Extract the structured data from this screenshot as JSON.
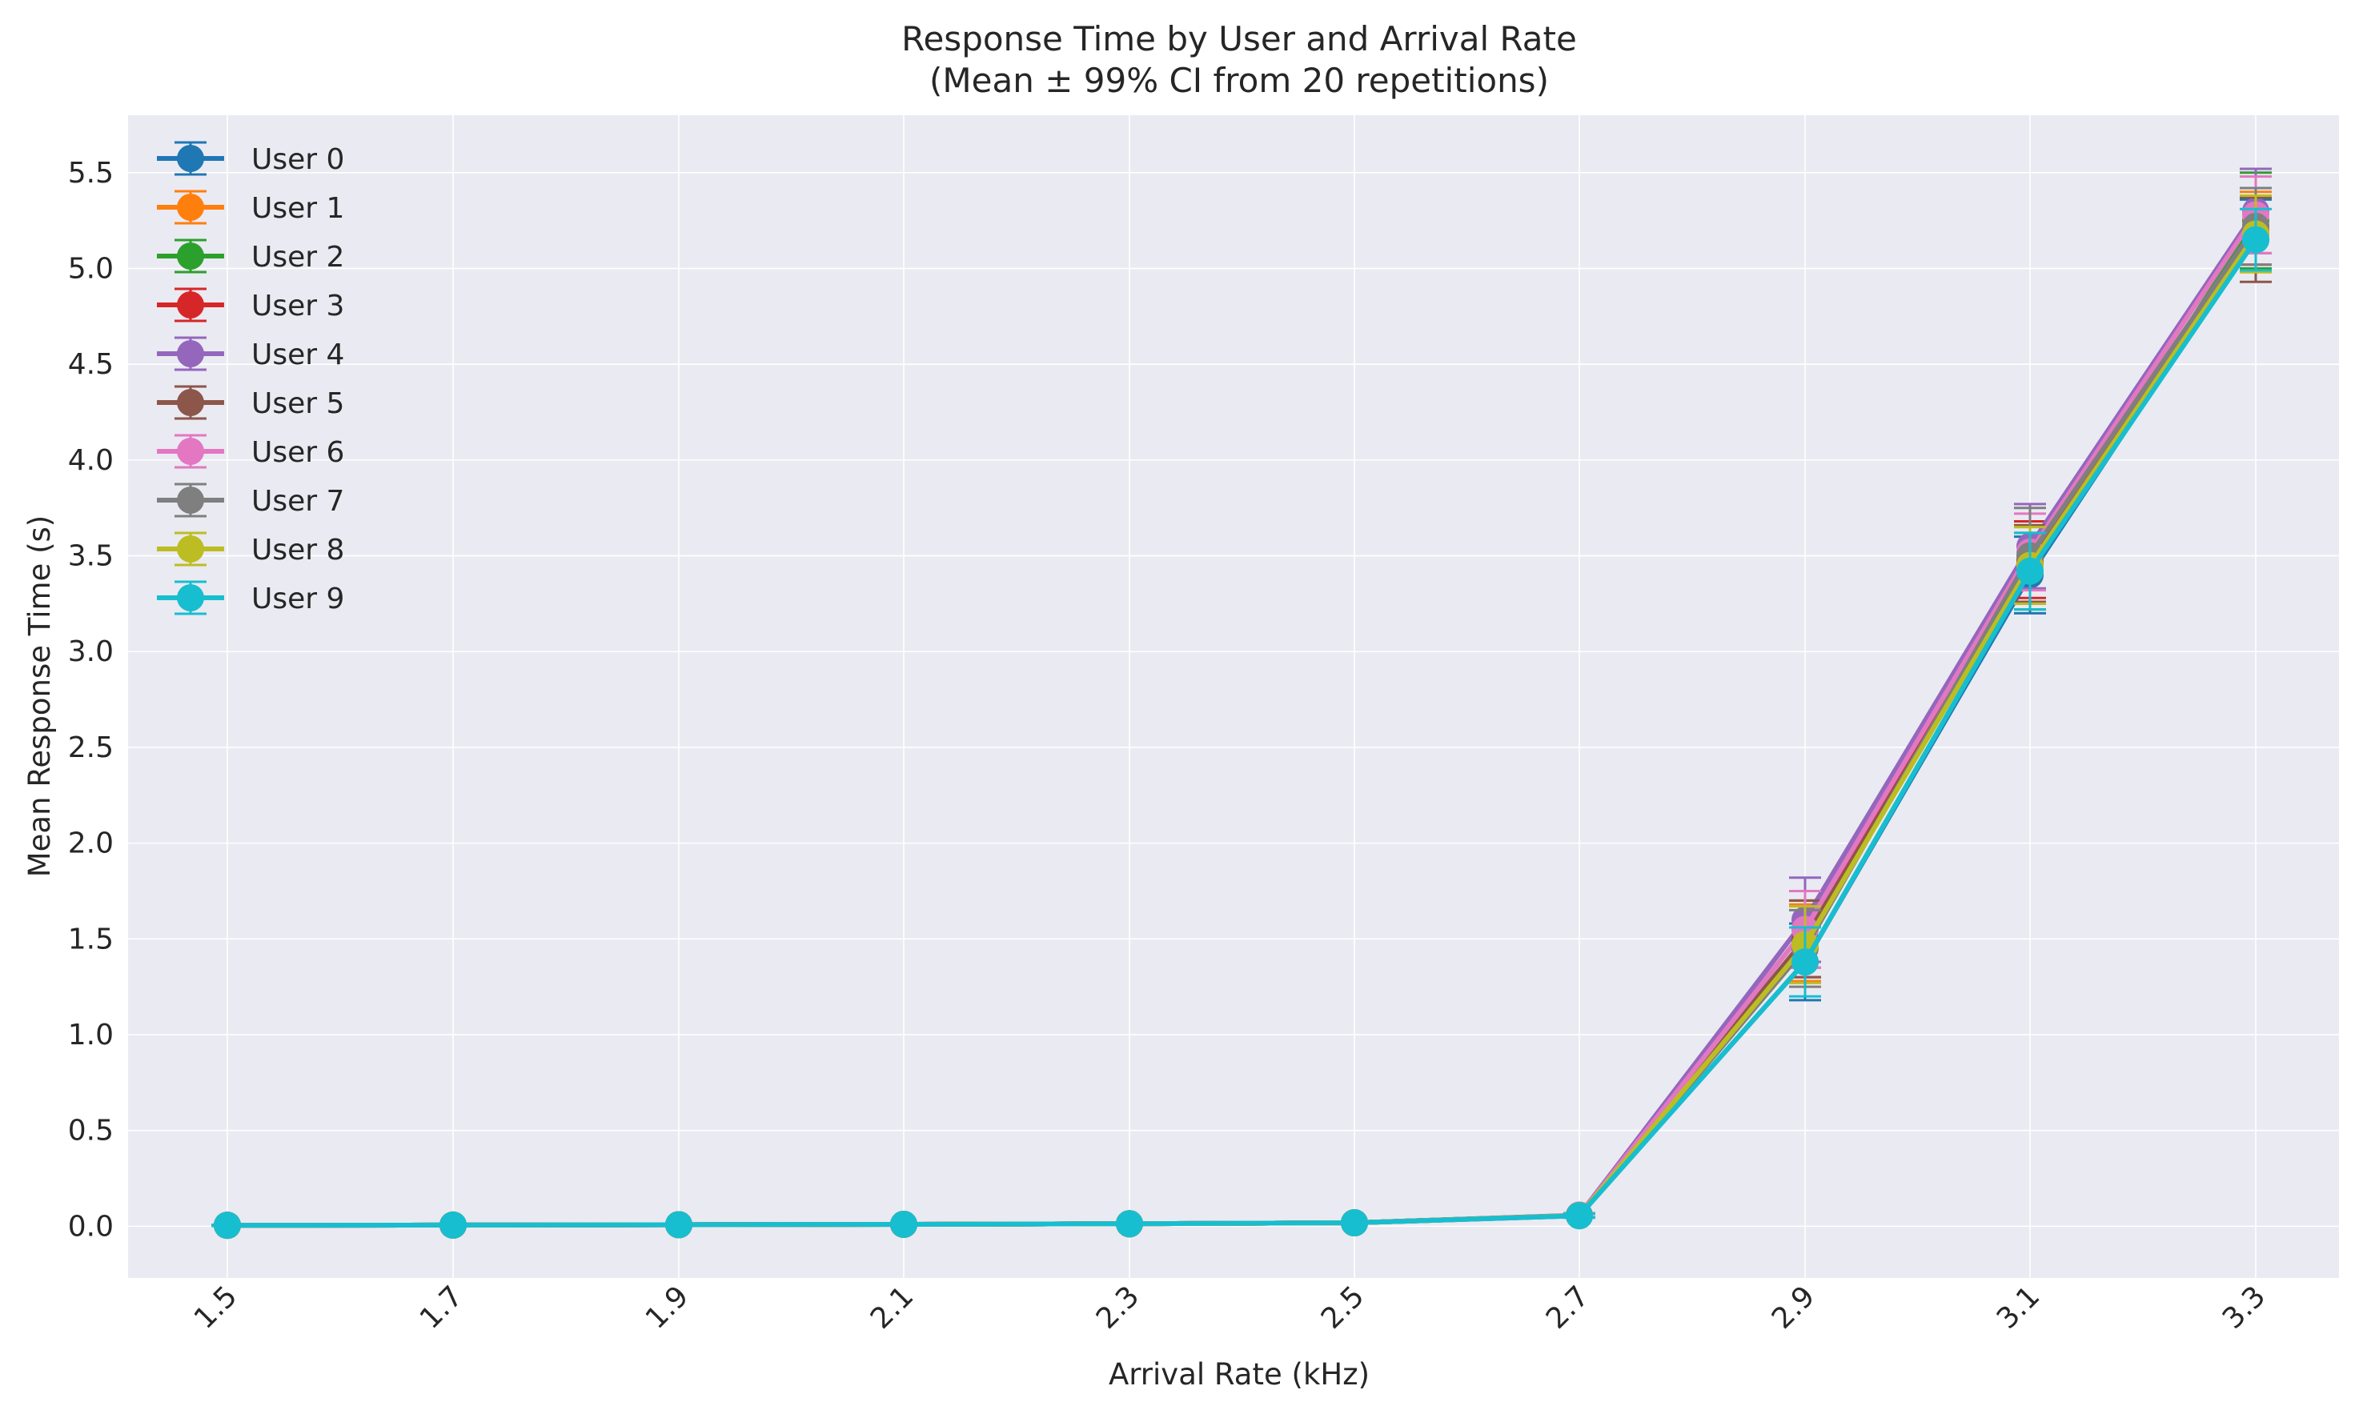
{
  "chart_data": {
    "type": "line",
    "title": "Response Time by User and Arrival Rate",
    "subtitle": "(Mean ± 99% CI from 20 repetitions)",
    "xlabel": "Arrival Rate (kHz)",
    "ylabel": "Mean Response Time (s)",
    "x": [
      1.5,
      1.7,
      1.9,
      2.1,
      2.3,
      2.5,
      2.7,
      2.9,
      3.1,
      3.3
    ],
    "x_tick_labels": [
      "1.5",
      "1.7",
      "1.9",
      "2.1",
      "2.3",
      "2.5",
      "2.7",
      "2.9",
      "3.1",
      "3.3"
    ],
    "y_ticks": [
      0.0,
      0.5,
      1.0,
      1.5,
      2.0,
      2.5,
      3.0,
      3.5,
      4.0,
      4.5,
      5.0,
      5.5
    ],
    "y_tick_labels": [
      "0.0",
      "0.5",
      "1.0",
      "1.5",
      "2.0",
      "2.5",
      "3.0",
      "3.5",
      "4.0",
      "4.5",
      "5.0",
      "5.5"
    ],
    "ylim": [
      -0.27,
      5.8
    ],
    "grid": true,
    "legend_position": "top-left",
    "series": [
      {
        "name": "User 0",
        "color": "#1f77b4",
        "values": [
          0.005,
          0.006,
          0.008,
          0.01,
          0.013,
          0.018,
          0.055,
          1.38,
          3.4,
          5.18
        ],
        "err": [
          0.002,
          0.002,
          0.002,
          0.003,
          0.003,
          0.004,
          0.01,
          0.2,
          0.2,
          0.18
        ]
      },
      {
        "name": "User 1",
        "color": "#ff7f0e",
        "values": [
          0.005,
          0.006,
          0.008,
          0.01,
          0.013,
          0.018,
          0.056,
          1.48,
          3.45,
          5.2
        ],
        "err": [
          0.002,
          0.002,
          0.002,
          0.003,
          0.003,
          0.004,
          0.01,
          0.2,
          0.2,
          0.2
        ]
      },
      {
        "name": "User 2",
        "color": "#2ca02c",
        "values": [
          0.005,
          0.006,
          0.008,
          0.01,
          0.013,
          0.018,
          0.056,
          1.55,
          3.42,
          5.25
        ],
        "err": [
          0.002,
          0.002,
          0.002,
          0.003,
          0.003,
          0.004,
          0.01,
          0.2,
          0.2,
          0.25
        ]
      },
      {
        "name": "User 3",
        "color": "#d62728",
        "values": [
          0.005,
          0.006,
          0.008,
          0.01,
          0.013,
          0.018,
          0.057,
          1.5,
          3.48,
          5.22
        ],
        "err": [
          0.002,
          0.002,
          0.002,
          0.003,
          0.003,
          0.004,
          0.01,
          0.2,
          0.2,
          0.2
        ]
      },
      {
        "name": "User 4",
        "color": "#9467bd",
        "values": [
          0.005,
          0.006,
          0.008,
          0.01,
          0.013,
          0.018,
          0.058,
          1.6,
          3.55,
          5.3
        ],
        "err": [
          0.002,
          0.002,
          0.002,
          0.003,
          0.003,
          0.004,
          0.01,
          0.22,
          0.22,
          0.22
        ]
      },
      {
        "name": "User 5",
        "color": "#8c564b",
        "values": [
          0.005,
          0.006,
          0.008,
          0.01,
          0.013,
          0.018,
          0.057,
          1.5,
          3.46,
          5.15
        ],
        "err": [
          0.002,
          0.002,
          0.002,
          0.003,
          0.003,
          0.004,
          0.01,
          0.2,
          0.2,
          0.22
        ]
      },
      {
        "name": "User 6",
        "color": "#e377c2",
        "values": [
          0.005,
          0.006,
          0.008,
          0.01,
          0.013,
          0.018,
          0.057,
          1.55,
          3.52,
          5.28
        ],
        "err": [
          0.002,
          0.002,
          0.002,
          0.003,
          0.003,
          0.004,
          0.01,
          0.2,
          0.2,
          0.2
        ]
      },
      {
        "name": "User 7",
        "color": "#7f7f7f",
        "values": [
          0.005,
          0.006,
          0.008,
          0.01,
          0.013,
          0.018,
          0.056,
          1.45,
          3.5,
          5.22
        ],
        "err": [
          0.002,
          0.002,
          0.002,
          0.003,
          0.003,
          0.004,
          0.01,
          0.2,
          0.25,
          0.2
        ]
      },
      {
        "name": "User 8",
        "color": "#bcbd22",
        "values": [
          0.005,
          0.006,
          0.008,
          0.01,
          0.013,
          0.018,
          0.056,
          1.47,
          3.45,
          5.18
        ],
        "err": [
          0.002,
          0.002,
          0.002,
          0.003,
          0.003,
          0.004,
          0.01,
          0.2,
          0.2,
          0.2
        ]
      },
      {
        "name": "User 9",
        "color": "#17becf",
        "values": [
          0.005,
          0.006,
          0.008,
          0.01,
          0.013,
          0.018,
          0.055,
          1.38,
          3.42,
          5.15
        ],
        "err": [
          0.002,
          0.002,
          0.002,
          0.003,
          0.003,
          0.004,
          0.01,
          0.18,
          0.2,
          0.16
        ]
      }
    ]
  },
  "colors": {
    "plot_background": "#eaeaf2",
    "grid": "#ffffff",
    "text": "#262626"
  }
}
